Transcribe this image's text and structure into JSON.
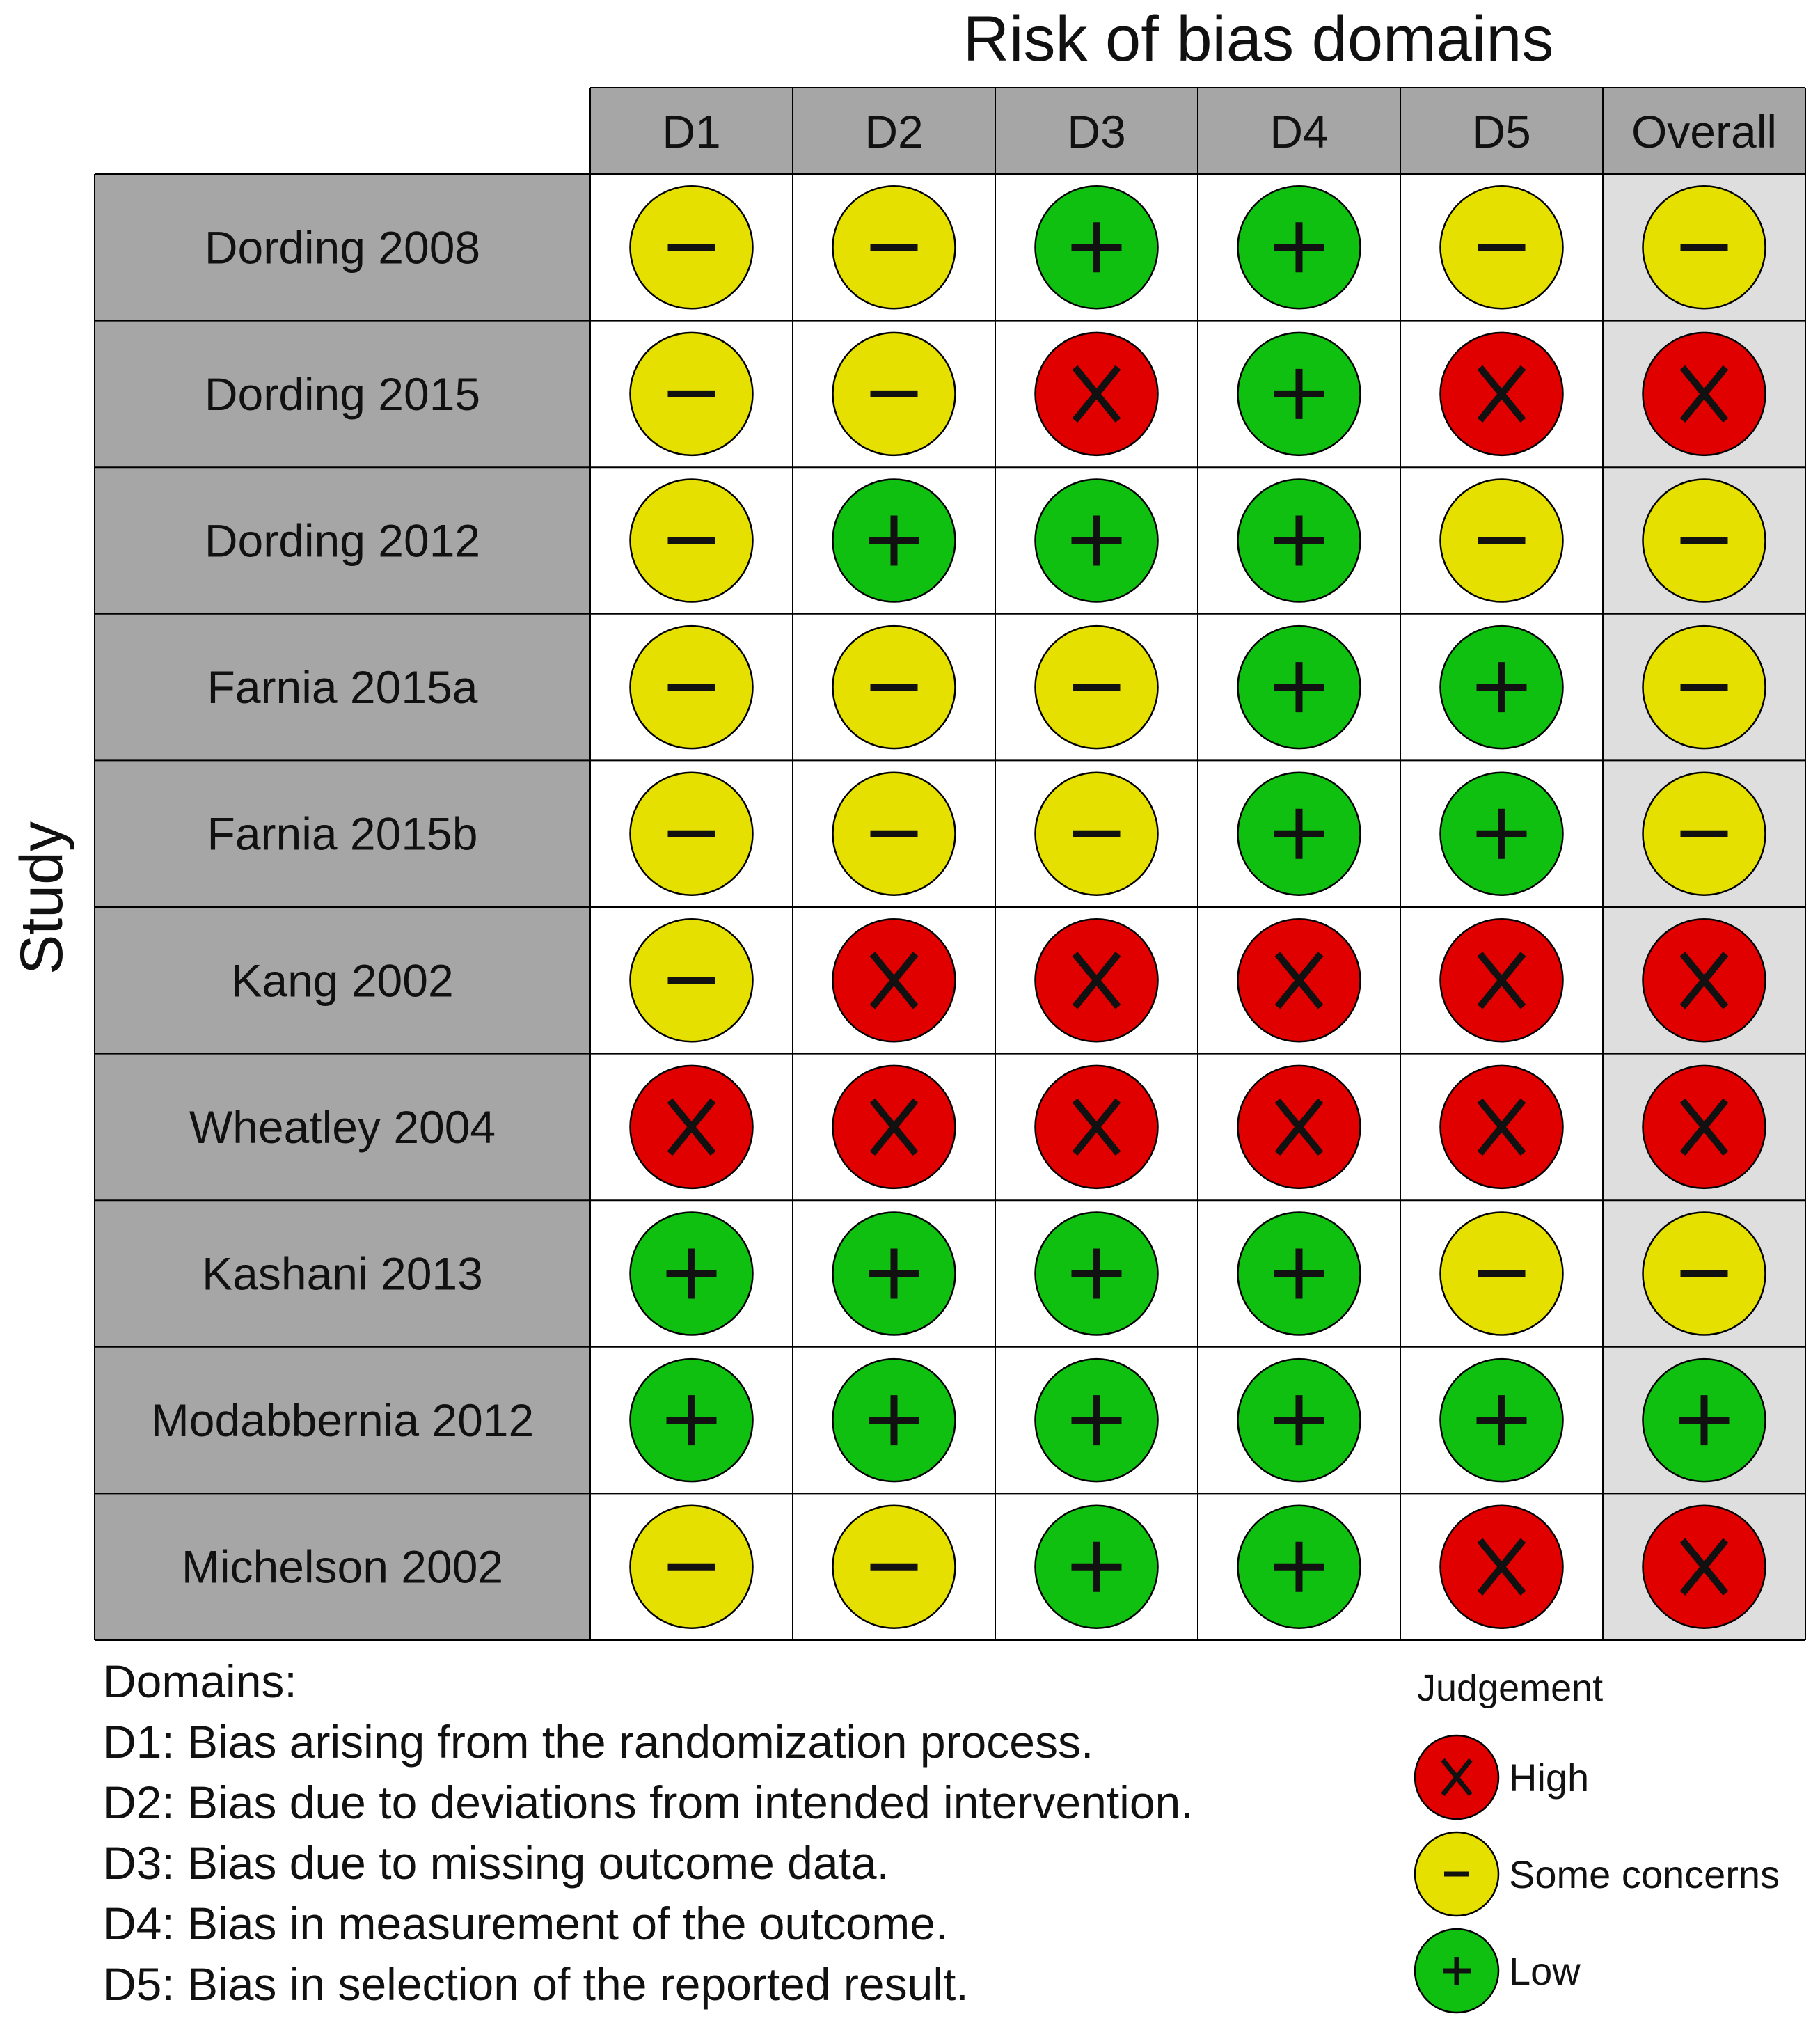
{
  "title": "Risk of bias domains",
  "y_axis_label": "Study",
  "chart_data": {
    "type": "table",
    "columns": [
      "D1",
      "D2",
      "D3",
      "D4",
      "D5",
      "Overall"
    ],
    "rows": [
      {
        "study": "Dording 2008",
        "judgements": [
          "some",
          "some",
          "low",
          "low",
          "some",
          "some"
        ]
      },
      {
        "study": "Dording 2015",
        "judgements": [
          "some",
          "some",
          "high",
          "low",
          "high",
          "high"
        ]
      },
      {
        "study": "Dording 2012",
        "judgements": [
          "some",
          "low",
          "low",
          "low",
          "some",
          "some"
        ]
      },
      {
        "study": "Farnia 2015a",
        "judgements": [
          "some",
          "some",
          "some",
          "low",
          "low",
          "some"
        ]
      },
      {
        "study": "Farnia 2015b",
        "judgements": [
          "some",
          "some",
          "some",
          "low",
          "low",
          "some"
        ]
      },
      {
        "study": "Kang 2002",
        "judgements": [
          "some",
          "high",
          "high",
          "high",
          "high",
          "high"
        ]
      },
      {
        "study": "Wheatley 2004",
        "judgements": [
          "high",
          "high",
          "high",
          "high",
          "high",
          "high"
        ]
      },
      {
        "study": "Kashani 2013",
        "judgements": [
          "low",
          "low",
          "low",
          "low",
          "some",
          "some"
        ]
      },
      {
        "study": "Modabbernia 2012",
        "judgements": [
          "low",
          "low",
          "low",
          "low",
          "low",
          "low"
        ]
      },
      {
        "study": "Michelson 2002",
        "judgements": [
          "some",
          "some",
          "low",
          "low",
          "high",
          "high"
        ]
      }
    ]
  },
  "domains": {
    "heading": "Domains:",
    "items": [
      "D1: Bias arising from the randomization process.",
      "D2: Bias due to deviations from intended intervention.",
      "D3: Bias due to missing outcome data.",
      "D4: Bias in measurement of the outcome.",
      "D5: Bias in selection of the reported result."
    ]
  },
  "legend": {
    "title": "Judgement",
    "items": [
      {
        "key": "high",
        "label": "High"
      },
      {
        "key": "some",
        "label": "Some concerns"
      },
      {
        "key": "low",
        "label": "Low"
      }
    ]
  },
  "judgement_styles": {
    "high": {
      "color": "#e00000",
      "symbol": "X",
      "icon": "x-icon"
    },
    "some": {
      "color": "#e6e000",
      "symbol": "−",
      "icon": "minus-icon"
    },
    "low": {
      "color": "#10c010",
      "symbol": "+",
      "icon": "plus-icon"
    }
  },
  "colors": {
    "header_fill": "#a6a6a6",
    "overall_fill": "#dedede",
    "cell_fill": "#ffffff",
    "grid_line": "#000000"
  }
}
